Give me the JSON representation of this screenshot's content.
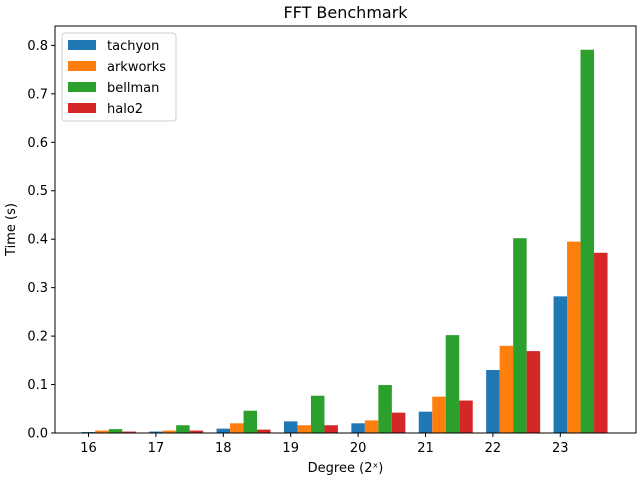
{
  "chart_data": {
    "type": "bar",
    "title": "FFT Benchmark",
    "xlabel": "Degree (2ˣ)",
    "ylabel": "Time (s)",
    "categories": [
      "16",
      "17",
      "18",
      "19",
      "20",
      "21",
      "22",
      "23"
    ],
    "ylim": [
      0,
      0.84
    ],
    "yticks": [
      0.0,
      0.1,
      0.2,
      0.3,
      0.4,
      0.5,
      0.6,
      0.7,
      0.8
    ],
    "ytick_labels": [
      "0.0",
      "0.1",
      "0.2",
      "0.3",
      "0.4",
      "0.5",
      "0.6",
      "0.7",
      "0.8"
    ],
    "legend_position": "top-left",
    "grid": false,
    "series": [
      {
        "name": "tachyon",
        "color": "#1f77b4",
        "values": [
          0.002,
          0.003,
          0.009,
          0.024,
          0.02,
          0.044,
          0.13,
          0.282
        ]
      },
      {
        "name": "arkworks",
        "color": "#ff7f0e",
        "values": [
          0.005,
          0.005,
          0.02,
          0.016,
          0.026,
          0.075,
          0.18,
          0.395
        ]
      },
      {
        "name": "bellman",
        "color": "#2ca02c",
        "values": [
          0.008,
          0.016,
          0.046,
          0.077,
          0.099,
          0.202,
          0.402,
          0.791
        ]
      },
      {
        "name": "halo2",
        "color": "#d62728",
        "values": [
          0.003,
          0.005,
          0.007,
          0.016,
          0.042,
          0.067,
          0.169,
          0.372
        ]
      }
    ]
  }
}
